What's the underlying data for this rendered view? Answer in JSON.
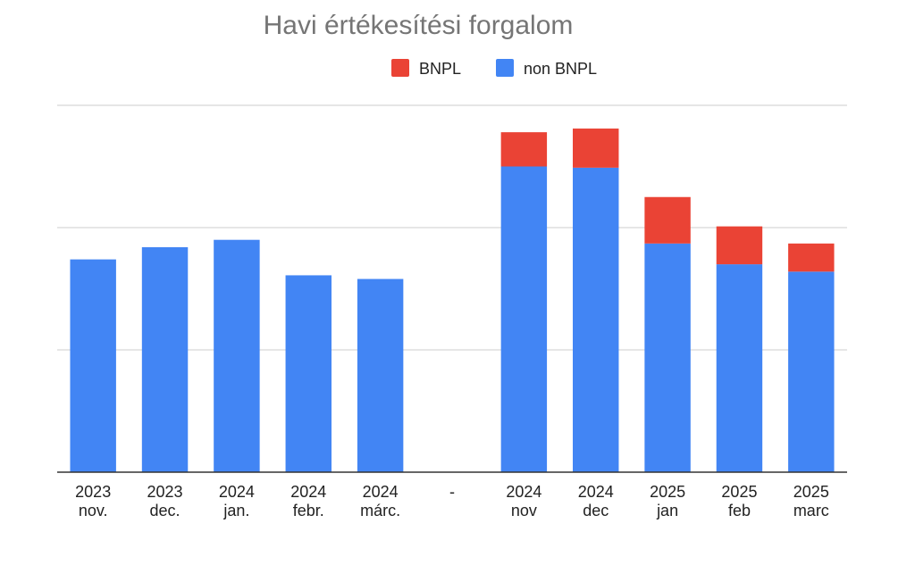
{
  "chart_data": {
    "type": "bar",
    "stacked": true,
    "title": "Havi értékesítési forgalom",
    "xlabel": "",
    "ylabel": "",
    "ylim": [
      0,
      300
    ],
    "grid": true,
    "legend_position": "top",
    "categories": [
      [
        "2023",
        "nov."
      ],
      [
        "2023",
        "dec."
      ],
      [
        "2024",
        "jan."
      ],
      [
        "2024",
        "febr."
      ],
      [
        "2024",
        "márc."
      ],
      [
        "-",
        ""
      ],
      [
        "2024",
        "nov"
      ],
      [
        "2024",
        "dec"
      ],
      [
        "2025",
        "jan"
      ],
      [
        "2025",
        "feb"
      ],
      [
        "2025",
        "marc"
      ]
    ],
    "series": [
      {
        "name": "non BNPL",
        "color": "#4285f4",
        "values": [
          174,
          184,
          190,
          161,
          158,
          0,
          250,
          249,
          187,
          170,
          164
        ]
      },
      {
        "name": "BNPL",
        "color": "#ea4335",
        "values": [
          0,
          0,
          0,
          0,
          0,
          0,
          28,
          32,
          38,
          31,
          23
        ]
      }
    ],
    "legend": [
      {
        "name": "BNPL",
        "color": "#ea4335"
      },
      {
        "name": "non BNPL",
        "color": "#4285f4"
      }
    ],
    "gridline_color": "#cccccc",
    "axis_color": "#333333"
  }
}
